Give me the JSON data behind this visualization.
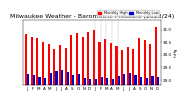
{
  "title": "Milwaukee Weather - Barometric Pressure (2023/24)",
  "ylabel": "inHg",
  "legend_high": "Monthly High",
  "legend_low": "Monthly Low",
  "high_color": "#FF0000",
  "low_color": "#0000CC",
  "background_color": "#FFFFFF",
  "ylim": [
    28.8,
    31.4
  ],
  "yticks": [
    29.0,
    29.5,
    30.0,
    30.5,
    31.0
  ],
  "months": [
    "J",
    "F",
    "M",
    "A",
    "M",
    "J",
    "J",
    "A",
    "S",
    "O",
    "N",
    "D",
    "J",
    "F",
    "M",
    "A",
    "M",
    "J",
    "J",
    "A",
    "S",
    "O",
    "N",
    "D"
  ],
  "highs": [
    30.85,
    30.72,
    30.68,
    30.52,
    30.42,
    30.22,
    30.38,
    30.28,
    30.78,
    30.88,
    30.7,
    30.9,
    30.98,
    30.52,
    30.62,
    30.48,
    30.35,
    30.18,
    30.3,
    30.22,
    30.68,
    30.58,
    30.42,
    31.1
  ],
  "lows": [
    29.22,
    29.18,
    29.12,
    29.08,
    29.28,
    29.35,
    29.38,
    29.32,
    29.18,
    29.22,
    29.08,
    29.05,
    29.02,
    29.1,
    29.08,
    29.05,
    29.15,
    29.22,
    29.28,
    29.18,
    29.1,
    29.08,
    29.15,
    29.12
  ],
  "dashed_indices": [
    12,
    13,
    14,
    15,
    16
  ],
  "title_fontsize": 4.5,
  "tick_fontsize": 3.0
}
